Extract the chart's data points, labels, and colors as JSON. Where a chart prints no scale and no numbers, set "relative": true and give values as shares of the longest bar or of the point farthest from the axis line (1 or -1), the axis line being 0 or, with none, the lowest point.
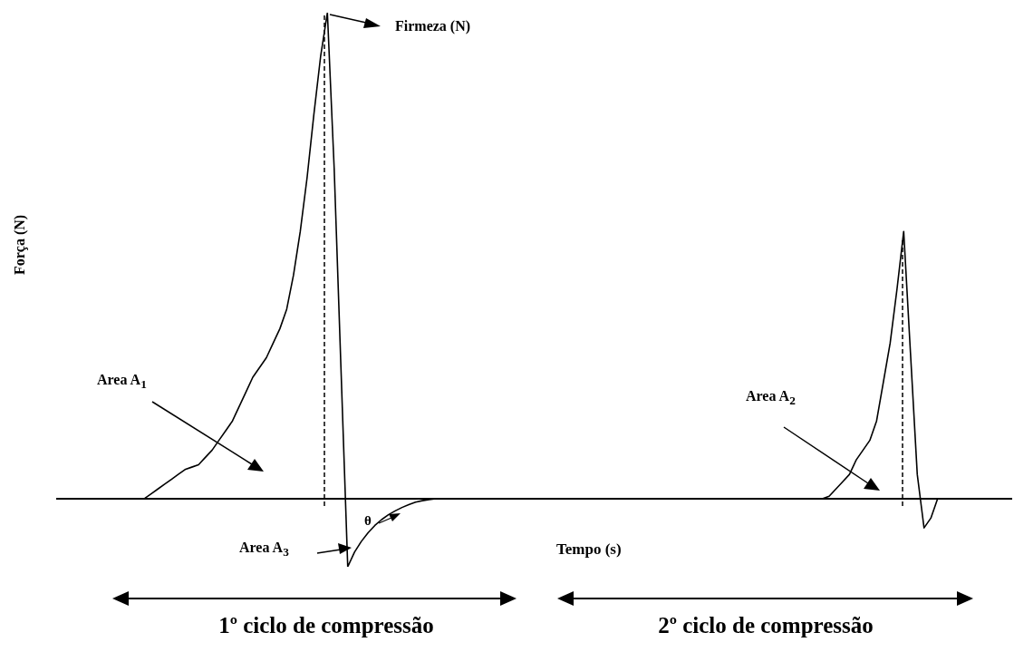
{
  "chart_data": {
    "type": "line",
    "relative": true,
    "tick_labels": false,
    "xlabel": "Tempo (s)",
    "ylabel": "Força (N)",
    "color": "#000000",
    "categories": [
      null,
      null,
      null,
      null,
      null,
      null,
      null,
      null,
      null,
      null,
      null,
      null,
      null,
      null,
      null,
      null,
      null,
      null,
      null,
      null,
      null,
      null,
      null,
      null,
      null,
      null,
      null,
      null,
      null,
      null,
      null,
      null,
      null,
      null,
      null,
      null,
      null,
      null,
      null,
      null,
      null,
      null,
      null,
      null,
      null,
      null,
      null,
      null,
      null,
      null,
      null,
      null,
      null,
      null,
      null,
      null,
      null,
      null,
      null,
      null,
      null,
      null,
      null,
      null,
      null,
      null,
      null,
      null,
      null,
      null,
      null,
      null,
      null,
      null,
      null,
      null,
      null,
      null,
      null,
      null,
      null,
      null,
      null,
      null,
      null,
      null,
      null,
      null,
      null,
      null,
      null,
      null,
      null,
      null,
      null,
      null,
      null,
      null,
      null,
      null,
      null,
      null,
      null,
      null,
      null,
      null,
      null,
      null,
      null,
      null,
      null,
      null,
      null,
      null,
      null,
      null,
      null,
      null,
      null,
      null,
      null,
      null,
      null,
      null,
      null,
      null,
      null,
      null,
      null,
      null,
      null,
      null,
      null,
      null,
      null,
      null,
      null,
      null,
      null,
      null,
      null,
      null
    ],
    "values": [
      0,
      0,
      0,
      0,
      0,
      0,
      0,
      0,
      0,
      0,
      0,
      0,
      0,
      0,
      0.01,
      0.02,
      0.03,
      0.04,
      0.05,
      0.06,
      0.065,
      0.07,
      0.085,
      0.1,
      0.12,
      0.14,
      0.16,
      0.19,
      0.22,
      0.25,
      0.27,
      0.29,
      0.32,
      0.35,
      0.39,
      0.46,
      0.55,
      0.66,
      0.79,
      0.91,
      1,
      0.68,
      0.27,
      -0.14,
      -0.11,
      -0.088,
      -0.07,
      -0.055,
      -0.043,
      -0.033,
      -0.025,
      -0.018,
      -0.012,
      -0.007,
      -0.004,
      -0.002,
      0,
      0,
      0,
      0,
      0,
      0,
      0,
      0,
      0,
      0,
      0,
      0,
      0,
      0,
      0,
      0,
      0,
      0,
      0,
      0,
      0,
      0,
      0,
      0,
      0,
      0,
      0,
      0,
      0,
      0,
      0,
      0,
      0,
      0,
      0,
      0,
      0,
      0,
      0,
      0,
      0,
      0,
      0,
      0,
      0,
      0,
      0,
      0,
      0,
      0,
      0,
      0,
      0,
      0,
      0,
      0,
      0,
      0,
      0.005,
      0.02,
      0.035,
      0.05,
      0.08,
      0.1,
      0.12,
      0.16,
      0.24,
      0.32,
      0.43,
      0.55,
      0.3,
      0.05,
      -0.06,
      -0.04,
      0,
      0,
      0,
      0,
      0,
      0,
      0,
      0,
      0,
      0,
      0,
      0
    ],
    "annotations": [
      "Firmeza (N)",
      "Area A$_{1}$",
      "Area A$_{3}$",
      "θ",
      "Area A$_{2}$",
      "1º ciclo de compressão",
      "2º ciclo de compressão"
    ]
  }
}
